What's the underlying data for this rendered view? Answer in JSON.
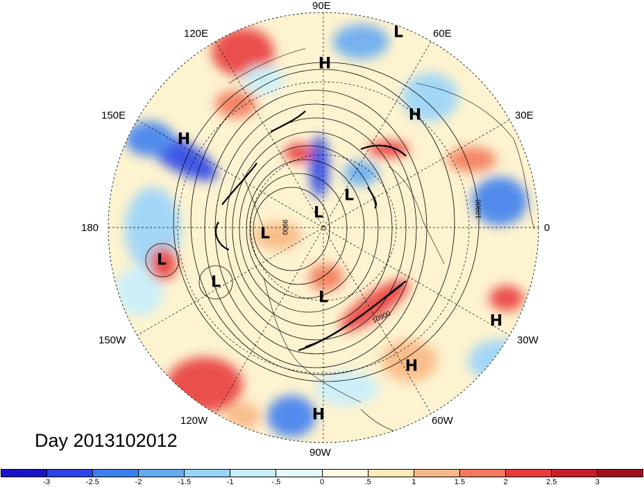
{
  "title": "Day 2013102012",
  "longitude_labels": {
    "lon_90e": "90E",
    "lon_120e": "120E",
    "lon_60e": "60E",
    "lon_150e": "150E",
    "lon_30e": "30E",
    "lon_180": "180",
    "lon_0": "0",
    "lon_150w": "150W",
    "lon_30w": "30W",
    "lon_120w": "120W",
    "lon_60w": "60W",
    "lon_90w": "90W"
  },
  "pressure_centers": [
    {
      "id": "h-siberia-north",
      "type": "H"
    },
    {
      "id": "l-barents",
      "type": "L"
    },
    {
      "id": "h-kazakh",
      "type": "H"
    },
    {
      "id": "h-east-asia",
      "type": "H"
    },
    {
      "id": "l-pole",
      "type": "L"
    },
    {
      "id": "l-scandinavia",
      "type": "L"
    },
    {
      "id": "l-alaska",
      "type": "L"
    },
    {
      "id": "l-pacific-west",
      "type": "L"
    },
    {
      "id": "l-pacific-east",
      "type": "L"
    },
    {
      "id": "l-hudson",
      "type": "L"
    },
    {
      "id": "h-atlantic-east",
      "type": "H"
    },
    {
      "id": "h-atlantic-west",
      "type": "H"
    },
    {
      "id": "h-mexico",
      "type": "H"
    }
  ],
  "contour_labels": [
    "10900",
    "9900",
    "10900"
  ],
  "colorbar": {
    "colors": [
      "#1a14c8",
      "#2c46e6",
      "#3f80f0",
      "#66aaf2",
      "#99d4fa",
      "#c8eefc",
      "#e6f8fe",
      "#fefbe2",
      "#fce9b8",
      "#f8b885",
      "#f27a5c",
      "#e83c3c",
      "#c81e2a",
      "#a00f1c"
    ],
    "ticks": [
      "-3",
      "-2.5",
      "-2",
      "-1.5",
      "-1",
      "-.5",
      "0",
      ".5",
      "1",
      "1.5",
      "2",
      "2.5",
      "3"
    ]
  }
}
